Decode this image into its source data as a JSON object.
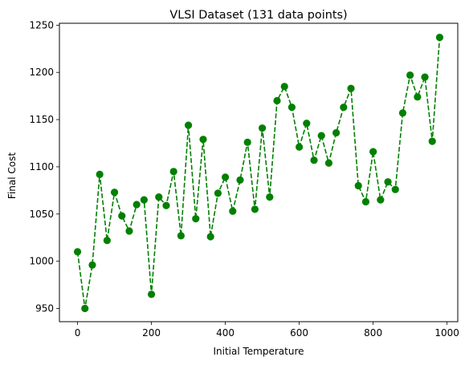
{
  "chart_data": {
    "type": "line",
    "title": "VLSI Dataset (131 data points)",
    "xlabel": "Initial Temperature",
    "ylabel": "Final Cost",
    "xlim": [
      -49,
      1029
    ],
    "ylim": [
      936,
      1252
    ],
    "xticks": [
      0,
      200,
      400,
      600,
      800,
      1000
    ],
    "yticks": [
      950,
      1000,
      1050,
      1100,
      1150,
      1200,
      1250
    ],
    "grid": false,
    "legend": "none",
    "series": [
      {
        "color": "#008000",
        "line_style": "dashed",
        "marker": "circle",
        "x": [
          0,
          20,
          40,
          60,
          80,
          100,
          120,
          140,
          160,
          180,
          200,
          220,
          240,
          260,
          280,
          300,
          320,
          340,
          360,
          380,
          400,
          420,
          440,
          460,
          480,
          500,
          520,
          540,
          560,
          580,
          600,
          620,
          640,
          660,
          680,
          700,
          720,
          740,
          760,
          780,
          800,
          820,
          840,
          860,
          880,
          900,
          920,
          940,
          960,
          980
        ],
        "y": [
          1010,
          950,
          996,
          1092,
          1022,
          1073,
          1048,
          1032,
          1060,
          1065,
          965,
          1068,
          1059,
          1095,
          1027,
          1144,
          1045,
          1129,
          1026,
          1072,
          1089,
          1053,
          1086,
          1126,
          1055,
          1141,
          1068,
          1170,
          1185,
          1163,
          1121,
          1146,
          1107,
          1133,
          1104,
          1136,
          1163,
          1183,
          1080,
          1063,
          1116,
          1065,
          1084,
          1076,
          1157,
          1197,
          1174,
          1195,
          1127,
          1237
        ]
      }
    ]
  }
}
